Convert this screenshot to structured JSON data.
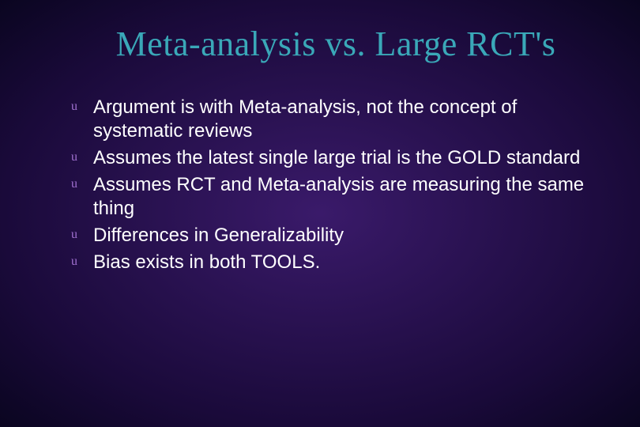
{
  "slide": {
    "title": "Meta-analysis vs. Large RCT's",
    "title_color": "#3aa8b8",
    "title_fontsize": 44,
    "bullet_color": "#a070d0",
    "text_color": "#ffffff",
    "body_fontsize": 24,
    "background_gradient": {
      "inner": "#3a1a6a",
      "mid": "#1a0a3a",
      "outer": "#0a0520"
    },
    "bullets": [
      "Argument is with Meta-analysis, not the concept of systematic reviews",
      "Assumes the latest single large trial is the GOLD standard",
      "Assumes RCT and Meta-analysis are measuring the same thing",
      "Differences in Generalizability",
      "Bias exists in both TOOLS."
    ]
  }
}
